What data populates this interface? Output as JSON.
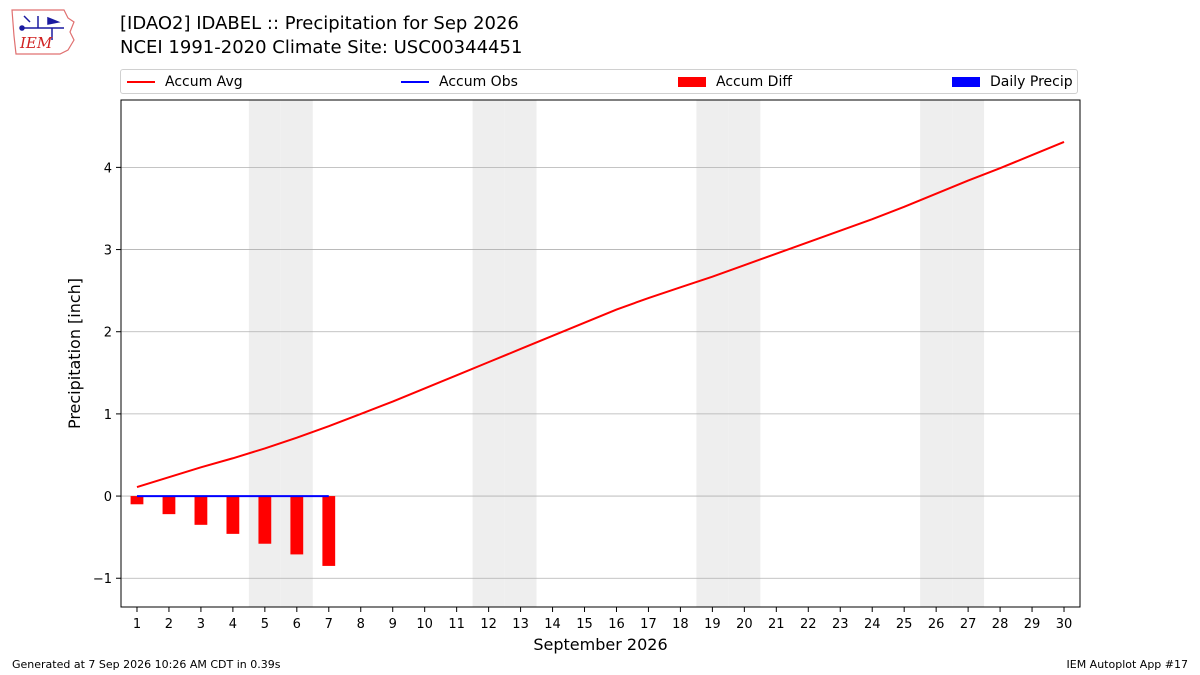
{
  "header": {
    "logo_text": "IEM",
    "title_line1": "[IDAO2] IDABEL :: Precipitation for Sep 2026",
    "title_line2": "NCEI 1991-2020 Climate Site: USC00344451"
  },
  "footer": {
    "left": "Generated at 7 Sep 2026 10:26 AM CDT in 0.39s",
    "right": "IEM Autoplot App #17"
  },
  "colors": {
    "accum_avg": "#ff0000",
    "accum_obs": "#0000ff",
    "accum_diff": "#ff0000",
    "daily_precip": "#0000ff",
    "weekend_band": "#eeeeee",
    "grid": "#b0b0b0"
  },
  "chart_data": {
    "type": "bar",
    "xlabel": "September 2026",
    "ylabel": "Precipitation [inch]",
    "xlim": [
      0.5,
      30.5
    ],
    "ylim": [
      -1.35,
      4.82
    ],
    "x_ticks": [
      1,
      2,
      3,
      4,
      5,
      6,
      7,
      8,
      9,
      10,
      11,
      12,
      13,
      14,
      15,
      16,
      17,
      18,
      19,
      20,
      21,
      22,
      23,
      24,
      25,
      26,
      27,
      28,
      29,
      30
    ],
    "y_ticks": [
      -1,
      0,
      1,
      2,
      3,
      4
    ],
    "y_tick_labels": [
      "−1",
      "0",
      "1",
      "2",
      "3",
      "4"
    ],
    "grid": "horizontal",
    "legend_placement": "top",
    "weekend_days": [
      5,
      6,
      12,
      13,
      19,
      20,
      26,
      27
    ],
    "legend": [
      {
        "label": "Accum Avg",
        "kind": "line",
        "color": "#ff0000"
      },
      {
        "label": "Accum Obs",
        "kind": "line",
        "color": "#0000ff"
      },
      {
        "label": "Accum Diff",
        "kind": "box",
        "color": "#ff0000"
      },
      {
        "label": "Daily Precip",
        "kind": "box",
        "color": "#0000ff"
      }
    ],
    "series": [
      {
        "name": "Accum Avg",
        "type": "line",
        "x": [
          1,
          2,
          3,
          4,
          5,
          6,
          7,
          8,
          9,
          10,
          11,
          12,
          13,
          14,
          15,
          16,
          17,
          18,
          19,
          20,
          21,
          22,
          23,
          24,
          25,
          26,
          27,
          28,
          29,
          30
        ],
        "values": [
          0.11,
          0.23,
          0.35,
          0.46,
          0.58,
          0.71,
          0.85,
          1.0,
          1.15,
          1.31,
          1.47,
          1.63,
          1.79,
          1.95,
          2.11,
          2.27,
          2.41,
          2.54,
          2.67,
          2.81,
          2.95,
          3.09,
          3.23,
          3.37,
          3.52,
          3.68,
          3.84,
          3.99,
          4.15,
          4.31
        ]
      },
      {
        "name": "Accum Obs",
        "type": "line",
        "x": [
          1,
          2,
          3,
          4,
          5,
          6,
          7
        ],
        "values": [
          0,
          0,
          0,
          0,
          0,
          0,
          0
        ]
      },
      {
        "name": "Accum Diff",
        "type": "bar",
        "x": [
          1,
          2,
          3,
          4,
          5,
          6,
          7
        ],
        "values": [
          -0.1,
          -0.22,
          -0.35,
          -0.46,
          -0.58,
          -0.71,
          -0.85
        ]
      },
      {
        "name": "Daily Precip",
        "type": "bar",
        "x": [
          1,
          2,
          3,
          4,
          5,
          6,
          7
        ],
        "values": [
          0,
          0,
          0,
          0,
          0,
          0,
          0
        ]
      }
    ]
  }
}
